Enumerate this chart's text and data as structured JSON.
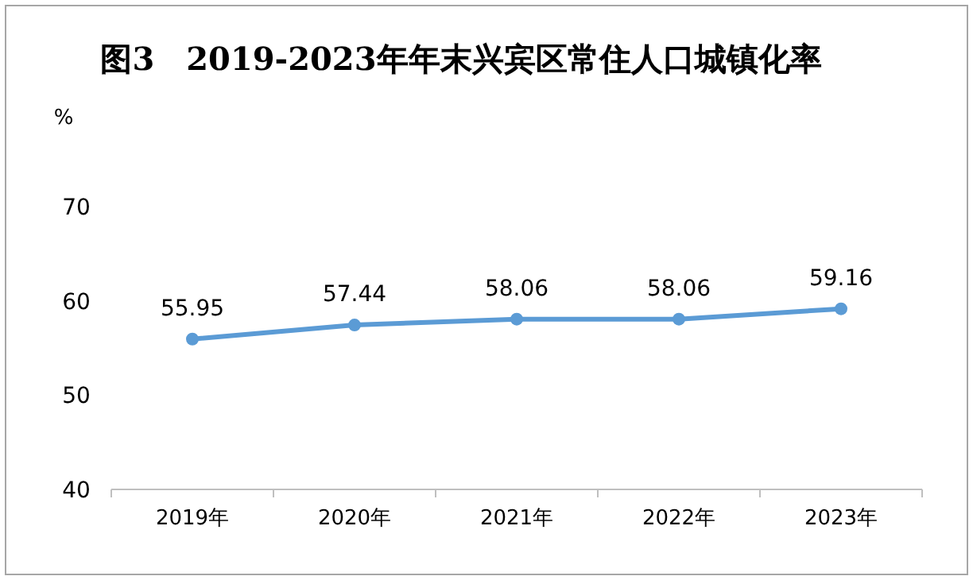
{
  "chart_data": {
    "type": "line",
    "title": "图3　2019-2023年年末兴宾区常住人口城镇化率",
    "ylabel": "%",
    "categories": [
      "2019年",
      "2020年",
      "2021年",
      "2022年",
      "2023年"
    ],
    "values": [
      55.95,
      57.44,
      58.06,
      58.06,
      59.16
    ],
    "color": "#5b9bd5",
    "ylim": [
      40,
      70
    ],
    "yticks": [
      40,
      50,
      60,
      70
    ],
    "data_labels": true,
    "marker": "circle",
    "line_style": "solid"
  }
}
